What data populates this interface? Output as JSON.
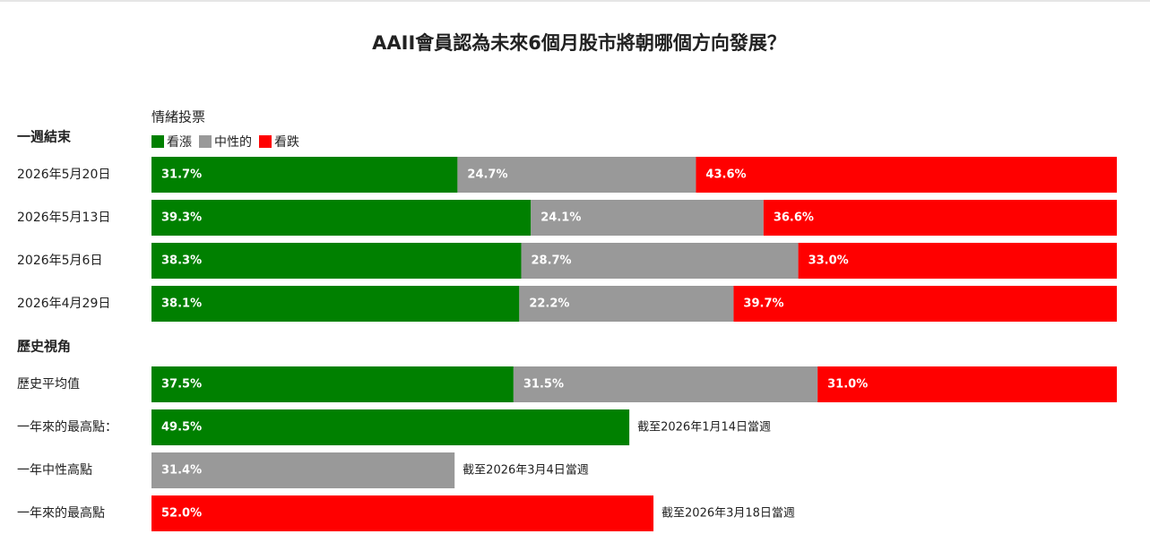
{
  "chart_data": {
    "type": "stacked-bar-horizontal",
    "title": "AAII會員認為未來6個月股市將朝哪個方向發展？",
    "legend_title": "情緒投票",
    "xlim": [
      0,
      100
    ],
    "series": [
      {
        "name": "看漲",
        "color": "#008000"
      },
      {
        "name": "中性的",
        "color": "#999999"
      },
      {
        "name": "看跌",
        "color": "#ff0000"
      }
    ],
    "groups": [
      {
        "heading": "一週結束",
        "categories": [
          "2026年5月20日",
          "2026年5月13日",
          "2026年5月6日",
          "2026年4月29日"
        ],
        "series": [
          {
            "values": [
              31.7,
              39.3,
              38.3,
              38.1
            ],
            "value_labels": [
              "31.7%",
              "39.3%",
              "38.3%",
              "38.1%"
            ]
          },
          {
            "values": [
              24.7,
              24.1,
              28.7,
              22.2
            ],
            "value_labels": [
              "24.7%",
              "24.1%",
              "28.7%",
              "22.2%"
            ]
          },
          {
            "values": [
              43.6,
              36.6,
              33.0,
              39.7
            ],
            "value_labels": [
              "43.6%",
              "36.6%",
              "33.0%",
              "39.7%"
            ]
          }
        ]
      },
      {
        "heading": "歷史視角",
        "categories": [
          "歷史平均值"
        ],
        "series": [
          {
            "values": [
              37.5
            ],
            "value_labels": [
              "37.5%"
            ]
          },
          {
            "values": [
              31.5
            ],
            "value_labels": [
              "31.5%"
            ]
          },
          {
            "values": [
              31.0
            ],
            "value_labels": [
              "31.0%"
            ]
          }
        ]
      }
    ],
    "extremes": [
      {
        "category": "一年來的最高點：",
        "value": 49.5,
        "value_label": "49.5%",
        "color": "#008000",
        "note": "截至2026年1月14日當週"
      },
      {
        "category": "一年中性高點",
        "value": 31.4,
        "value_label": "31.4%",
        "color": "#999999",
        "note": "截至2026年3月4日當週"
      },
      {
        "category": "一年來的最高點",
        "value": 52.0,
        "value_label": "52.0%",
        "color": "#ff0000",
        "note": "截至2026年3月18日當週"
      }
    ]
  }
}
